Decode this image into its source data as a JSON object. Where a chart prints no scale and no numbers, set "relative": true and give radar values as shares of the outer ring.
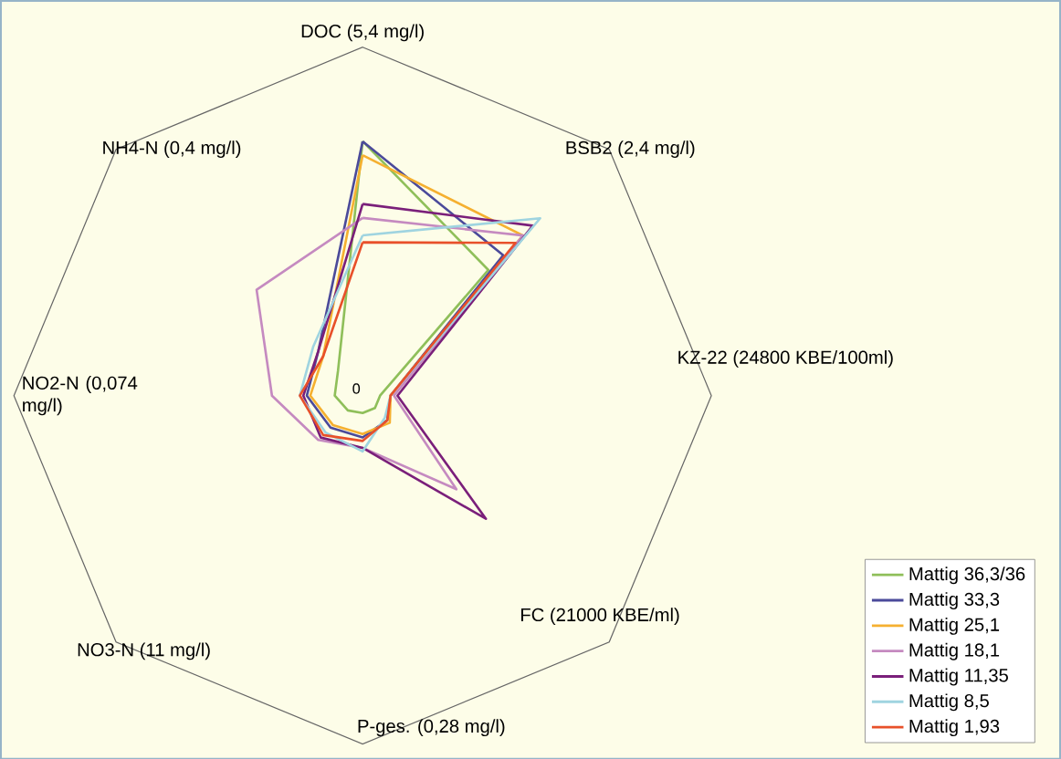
{
  "chart_data": {
    "type": "radar",
    "relative": true,
    "legend": "bottom right",
    "annotations": [
      "0"
    ],
    "categories": [
      "DOC (5,4 mg/l)",
      "BSB2 (2,4 mg/l)",
      "KZ-22 (24800 KBE/100ml)",
      "FC (21000 KBE/ml)",
      "P-ges. (0,28 mg/l)",
      "NO3-N (11 mg/l)",
      "NO2-N (0,074 mg/l)",
      "NH4-N (0,4 mg/l)"
    ],
    "series": [
      {
        "name": "Mattig 36,3/36",
        "color": "#8fbf5a",
        "values": [
          0.73,
          0.51,
          0.05,
          0.05,
          0.05,
          0.06,
          0.08,
          0.1
        ]
      },
      {
        "name": "Mattig 33,3",
        "color": "#4b4a9a",
        "values": [
          0.73,
          0.57,
          0.08,
          0.1,
          0.12,
          0.13,
          0.16,
          0.18
        ]
      },
      {
        "name": "Mattig 25,1",
        "color": "#f5b030",
        "values": [
          0.69,
          0.65,
          0.08,
          0.11,
          0.11,
          0.12,
          0.15,
          0.16
        ]
      },
      {
        "name": "Mattig 18,1",
        "color": "#c58ac0",
        "values": [
          0.51,
          0.65,
          0.09,
          0.38,
          0.15,
          0.18,
          0.26,
          0.43
        ]
      },
      {
        "name": "Mattig 11,35",
        "color": "#7a1f7a",
        "values": [
          0.55,
          0.69,
          0.1,
          0.5,
          0.15,
          0.17,
          0.17,
          0.18
        ]
      },
      {
        "name": "Mattig 8,5",
        "color": "#9fd4e0",
        "values": [
          0.46,
          0.72,
          0.08,
          0.09,
          0.16,
          0.15,
          0.18,
          0.2
        ]
      },
      {
        "name": "Mattig 1,93",
        "color": "#e8502a",
        "values": [
          0.44,
          0.62,
          0.08,
          0.1,
          0.13,
          0.16,
          0.18,
          0.16
        ]
      }
    ]
  }
}
